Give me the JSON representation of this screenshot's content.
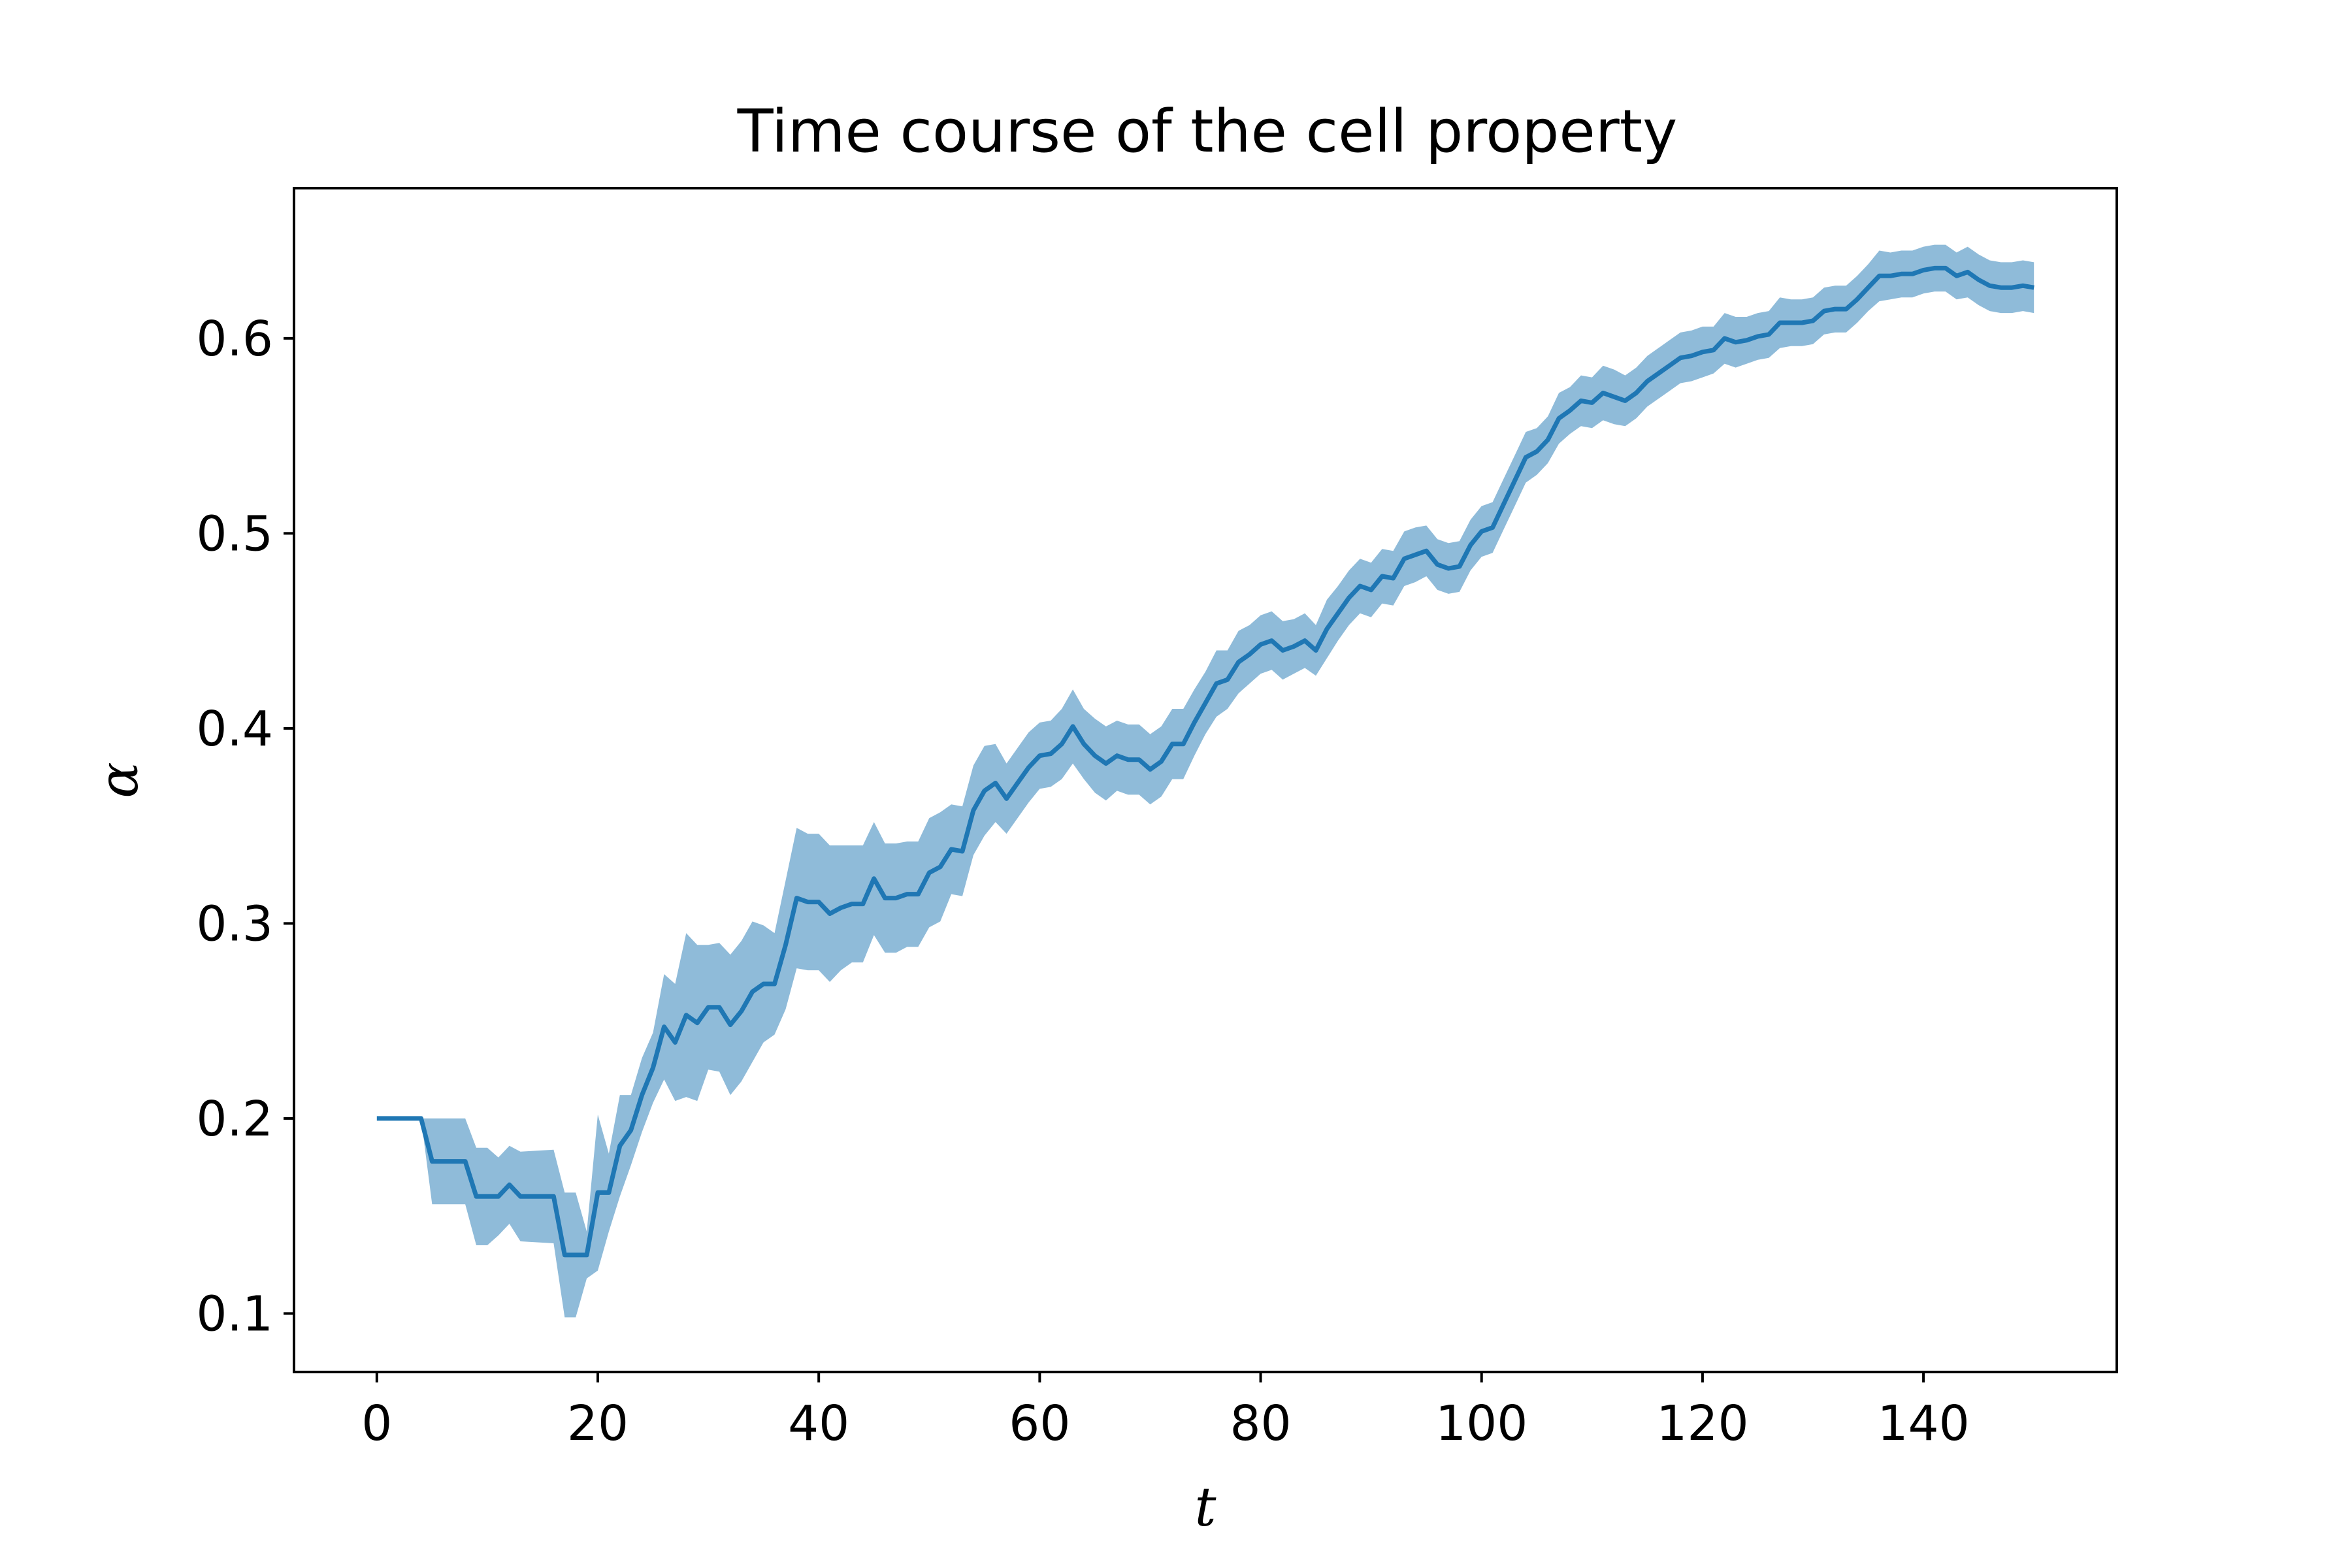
{
  "chart_data": {
    "type": "line",
    "title": "Time course of the cell property",
    "xlabel": "t",
    "ylabel": "α",
    "xlim": [
      -7.5,
      157.5
    ],
    "ylim": [
      0.07,
      0.677
    ],
    "xticks": [
      0,
      20,
      40,
      60,
      80,
      100,
      120,
      140
    ],
    "xtick_labels": [
      "0",
      "20",
      "40",
      "60",
      "80",
      "100",
      "120",
      "140"
    ],
    "yticks": [
      0.1,
      0.2,
      0.3,
      0.4,
      0.5,
      0.6
    ],
    "ytick_labels": [
      "0.1",
      "0.2",
      "0.3",
      "0.4",
      "0.5",
      "0.6"
    ],
    "grid": false,
    "colors": {
      "line": "#1f77b4",
      "band": "#1f77b4"
    },
    "series": [
      {
        "x": [
          0,
          2,
          4,
          5,
          8,
          9,
          10,
          11,
          12,
          13,
          16,
          17,
          18,
          19,
          20,
          21,
          22,
          23,
          24,
          25,
          26,
          27,
          28,
          29,
          30,
          31,
          32,
          33,
          34,
          35,
          36,
          37,
          38,
          39,
          40,
          41,
          42,
          43,
          44,
          45,
          46,
          47,
          48,
          49,
          50,
          51,
          52,
          53,
          54,
          55,
          56,
          57,
          58,
          59,
          60,
          61,
          62,
          63,
          64,
          65,
          66,
          67,
          68,
          69,
          70,
          71,
          72,
          73,
          74,
          75,
          76,
          77,
          78,
          79,
          80,
          81,
          82,
          83,
          84,
          85,
          86,
          87,
          88,
          89,
          90,
          91,
          92,
          93,
          94,
          95,
          96,
          97,
          98,
          99,
          100,
          101,
          102,
          103,
          104,
          105,
          106,
          107,
          108,
          109,
          110,
          111,
          112,
          113,
          114,
          115,
          116,
          117,
          118,
          119,
          120,
          121,
          122,
          123,
          124,
          125,
          126,
          127,
          128,
          129,
          130,
          131,
          132,
          133,
          134,
          135,
          136,
          137,
          138,
          139,
          140,
          141,
          142,
          143,
          144,
          145,
          146,
          147,
          148,
          149,
          150
        ],
        "y": [
          0.2,
          0.2,
          0.2,
          0.178,
          0.178,
          0.16,
          0.16,
          0.16,
          0.166,
          0.16,
          0.16,
          0.13,
          0.13,
          0.13,
          0.162,
          0.162,
          0.186,
          0.194,
          0.212,
          0.226,
          0.247,
          0.239,
          0.253,
          0.249,
          0.257,
          0.257,
          0.248,
          0.255,
          0.265,
          0.269,
          0.269,
          0.289,
          0.313,
          0.311,
          0.311,
          0.305,
          0.308,
          0.31,
          0.31,
          0.323,
          0.313,
          0.313,
          0.315,
          0.315,
          0.326,
          0.329,
          0.338,
          0.337,
          0.358,
          0.368,
          0.372,
          0.364,
          0.372,
          0.38,
          0.386,
          0.387,
          0.392,
          0.401,
          0.392,
          0.386,
          0.382,
          0.386,
          0.384,
          0.384,
          0.379,
          0.383,
          0.392,
          0.392,
          0.403,
          0.413,
          0.423,
          0.425,
          0.434,
          0.438,
          0.443,
          0.445,
          0.44,
          0.442,
          0.445,
          0.44,
          0.451,
          0.459,
          0.467,
          0.473,
          0.471,
          0.478,
          0.477,
          0.487,
          0.489,
          0.491,
          0.484,
          0.482,
          0.483,
          0.494,
          0.501,
          0.503,
          0.515,
          0.527,
          0.539,
          0.542,
          0.548,
          0.559,
          0.563,
          0.568,
          0.567,
          0.572,
          0.57,
          0.568,
          0.572,
          0.578,
          0.582,
          0.586,
          0.59,
          0.591,
          0.593,
          0.594,
          0.6,
          0.598,
          0.599,
          0.601,
          0.602,
          0.608,
          0.608,
          0.608,
          0.609,
          0.614,
          0.615,
          0.615,
          0.62,
          0.626,
          0.632,
          0.632,
          0.633,
          0.633,
          0.635,
          0.636,
          0.636,
          0.632,
          0.634,
          0.63,
          0.627,
          0.626,
          0.626,
          0.627,
          0.626
        ],
        "lower": [
          0.2,
          0.2,
          0.2,
          0.156,
          0.156,
          0.135,
          0.135,
          0.14,
          0.146,
          0.137,
          0.136,
          0.098,
          0.098,
          0.118,
          0.122,
          0.142,
          0.16,
          0.176,
          0.193,
          0.208,
          0.22,
          0.209,
          0.211,
          0.209,
          0.225,
          0.224,
          0.212,
          0.219,
          0.229,
          0.239,
          0.243,
          0.256,
          0.277,
          0.276,
          0.276,
          0.27,
          0.276,
          0.28,
          0.28,
          0.294,
          0.285,
          0.285,
          0.288,
          0.288,
          0.298,
          0.301,
          0.315,
          0.314,
          0.335,
          0.345,
          0.352,
          0.346,
          0.354,
          0.362,
          0.369,
          0.37,
          0.374,
          0.382,
          0.374,
          0.367,
          0.363,
          0.368,
          0.366,
          0.366,
          0.361,
          0.365,
          0.374,
          0.374,
          0.386,
          0.397,
          0.406,
          0.41,
          0.418,
          0.423,
          0.428,
          0.43,
          0.425,
          0.428,
          0.431,
          0.427,
          0.436,
          0.445,
          0.453,
          0.459,
          0.457,
          0.464,
          0.463,
          0.473,
          0.475,
          0.478,
          0.471,
          0.469,
          0.47,
          0.481,
          0.488,
          0.49,
          0.502,
          0.514,
          0.526,
          0.53,
          0.536,
          0.546,
          0.551,
          0.555,
          0.554,
          0.558,
          0.556,
          0.555,
          0.559,
          0.565,
          0.569,
          0.573,
          0.577,
          0.578,
          0.58,
          0.582,
          0.587,
          0.585,
          0.587,
          0.589,
          0.59,
          0.595,
          0.596,
          0.596,
          0.597,
          0.602,
          0.603,
          0.603,
          0.608,
          0.614,
          0.619,
          0.62,
          0.621,
          0.621,
          0.623,
          0.624,
          0.624,
          0.62,
          0.621,
          0.617,
          0.614,
          0.613,
          0.613,
          0.614,
          0.613
        ],
        "upper": [
          0.2,
          0.2,
          0.2,
          0.2,
          0.2,
          0.185,
          0.185,
          0.18,
          0.186,
          0.183,
          0.184,
          0.162,
          0.162,
          0.142,
          0.202,
          0.182,
          0.212,
          0.212,
          0.231,
          0.244,
          0.274,
          0.269,
          0.295,
          0.289,
          0.289,
          0.29,
          0.284,
          0.291,
          0.301,
          0.299,
          0.295,
          0.322,
          0.349,
          0.346,
          0.346,
          0.34,
          0.34,
          0.34,
          0.34,
          0.352,
          0.341,
          0.341,
          0.342,
          0.342,
          0.354,
          0.357,
          0.361,
          0.36,
          0.381,
          0.391,
          0.392,
          0.382,
          0.39,
          0.398,
          0.403,
          0.404,
          0.41,
          0.42,
          0.41,
          0.405,
          0.401,
          0.404,
          0.402,
          0.402,
          0.397,
          0.401,
          0.41,
          0.41,
          0.42,
          0.429,
          0.44,
          0.44,
          0.45,
          0.453,
          0.458,
          0.46,
          0.455,
          0.456,
          0.459,
          0.453,
          0.466,
          0.473,
          0.481,
          0.487,
          0.485,
          0.492,
          0.491,
          0.501,
          0.503,
          0.504,
          0.497,
          0.495,
          0.496,
          0.507,
          0.514,
          0.516,
          0.528,
          0.54,
          0.552,
          0.554,
          0.56,
          0.572,
          0.575,
          0.581,
          0.58,
          0.586,
          0.584,
          0.581,
          0.585,
          0.591,
          0.595,
          0.599,
          0.603,
          0.604,
          0.606,
          0.606,
          0.613,
          0.611,
          0.611,
          0.613,
          0.614,
          0.621,
          0.62,
          0.62,
          0.621,
          0.626,
          0.627,
          0.627,
          0.632,
          0.638,
          0.645,
          0.644,
          0.645,
          0.645,
          0.647,
          0.648,
          0.648,
          0.644,
          0.647,
          0.643,
          0.64,
          0.639,
          0.639,
          0.64,
          0.639
        ]
      }
    ]
  }
}
